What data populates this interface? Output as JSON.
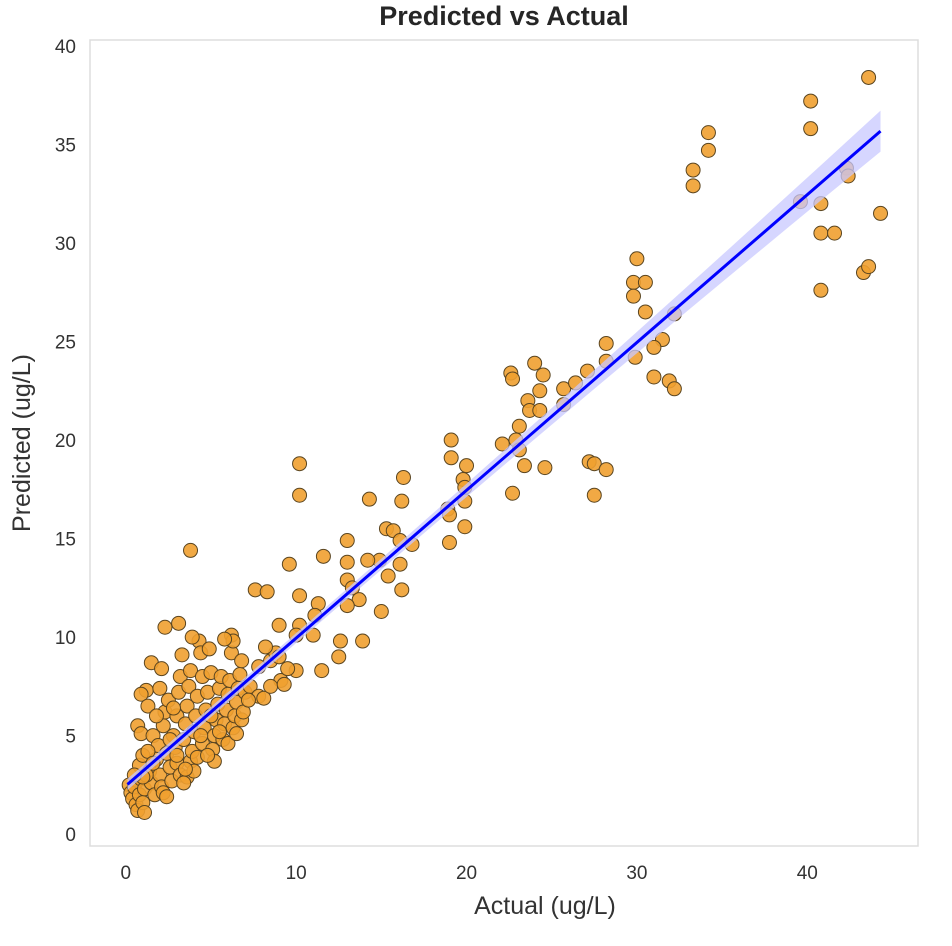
{
  "chart_data": {
    "type": "scatter",
    "title": "Predicted vs Actual",
    "xlabel": "Actual (ug/L)",
    "ylabel": "Predicted (ug/L)",
    "xlim": [
      -2.1,
      46.5
    ],
    "ylim": [
      -0.6,
      40.3
    ],
    "xticks": [
      0,
      10,
      20,
      30,
      40
    ],
    "yticks": [
      0,
      5,
      10,
      15,
      20,
      25,
      30,
      35,
      40
    ],
    "grid": false,
    "colors": {
      "points": "#f0a030",
      "point_edge": "#5a4520",
      "regression_line": "#0000ff",
      "confidence_band": "#c8c8ff",
      "frame": "#dddddd"
    },
    "regression": {
      "slope": 0.75,
      "intercept": 2.45,
      "x_range": [
        0.1,
        44.3
      ]
    },
    "points": [
      [
        40.2,
        37.2
      ],
      [
        43.6,
        38.4
      ],
      [
        40.2,
        35.8
      ],
      [
        34.2,
        35.6
      ],
      [
        34.2,
        34.7
      ],
      [
        33.3,
        33.7
      ],
      [
        33.3,
        32.9
      ],
      [
        39.6,
        32.1
      ],
      [
        40.8,
        32.0
      ],
      [
        44.3,
        31.5
      ],
      [
        40.8,
        30.5
      ],
      [
        41.6,
        30.5
      ],
      [
        42.3,
        33.8
      ],
      [
        42.4,
        33.4
      ],
      [
        43.3,
        28.5
      ],
      [
        43.6,
        28.8
      ],
      [
        40.8,
        27.6
      ],
      [
        30.0,
        29.2
      ],
      [
        29.8,
        28.0
      ],
      [
        30.5,
        28.0
      ],
      [
        29.8,
        27.3
      ],
      [
        30.5,
        26.5
      ],
      [
        32.2,
        26.4
      ],
      [
        28.2,
        24.9
      ],
      [
        31.5,
        25.1
      ],
      [
        31.0,
        24.7
      ],
      [
        29.9,
        24.2
      ],
      [
        28.2,
        24.0
      ],
      [
        31.9,
        23.0
      ],
      [
        32.2,
        22.6
      ],
      [
        31.0,
        23.2
      ],
      [
        27.1,
        23.5
      ],
      [
        25.7,
        22.6
      ],
      [
        26.4,
        22.9
      ],
      [
        25.7,
        21.8
      ],
      [
        24.0,
        23.9
      ],
      [
        24.5,
        23.3
      ],
      [
        22.6,
        23.4
      ],
      [
        22.7,
        23.1
      ],
      [
        24.3,
        22.5
      ],
      [
        23.6,
        22.0
      ],
      [
        23.7,
        21.5
      ],
      [
        24.3,
        21.5
      ],
      [
        23.1,
        20.7
      ],
      [
        22.9,
        20.0
      ],
      [
        22.1,
        19.8
      ],
      [
        23.1,
        19.5
      ],
      [
        23.4,
        18.7
      ],
      [
        24.6,
        18.6
      ],
      [
        22.7,
        17.3
      ],
      [
        27.2,
        18.9
      ],
      [
        27.5,
        18.8
      ],
      [
        28.2,
        18.5
      ],
      [
        27.5,
        17.2
      ],
      [
        19.1,
        20.0
      ],
      [
        19.1,
        19.1
      ],
      [
        20.0,
        18.7
      ],
      [
        19.8,
        18.0
      ],
      [
        19.9,
        17.6
      ],
      [
        18.9,
        16.5
      ],
      [
        19.0,
        16.2
      ],
      [
        19.9,
        16.9
      ],
      [
        19.9,
        15.6
      ],
      [
        19.0,
        14.8
      ],
      [
        10.2,
        18.8
      ],
      [
        10.2,
        17.2
      ],
      [
        16.3,
        18.1
      ],
      [
        16.2,
        16.9
      ],
      [
        14.3,
        17.0
      ],
      [
        13.0,
        14.9
      ],
      [
        15.3,
        15.5
      ],
      [
        15.7,
        15.4
      ],
      [
        16.1,
        14.9
      ],
      [
        16.8,
        14.7
      ],
      [
        16.1,
        13.7
      ],
      [
        16.2,
        12.4
      ],
      [
        14.9,
        13.9
      ],
      [
        15.4,
        13.1
      ],
      [
        14.2,
        13.9
      ],
      [
        13.0,
        13.8
      ],
      [
        13.0,
        12.9
      ],
      [
        13.3,
        12.5
      ],
      [
        13.7,
        11.9
      ],
      [
        13.0,
        11.6
      ],
      [
        15.0,
        11.3
      ],
      [
        13.9,
        9.8
      ],
      [
        12.6,
        9.8
      ],
      [
        11.6,
        14.1
      ],
      [
        9.6,
        13.7
      ],
      [
        10.2,
        12.1
      ],
      [
        11.3,
        11.7
      ],
      [
        11.1,
        11.1
      ],
      [
        10.2,
        10.6
      ],
      [
        10.0,
        10.1
      ],
      [
        11.0,
        10.1
      ],
      [
        9.0,
        10.6
      ],
      [
        8.5,
        8.8
      ],
      [
        7.6,
        12.4
      ],
      [
        8.3,
        12.3
      ],
      [
        3.8,
        14.4
      ],
      [
        3.1,
        10.7
      ],
      [
        2.3,
        10.5
      ],
      [
        6.2,
        10.1
      ],
      [
        11.5,
        8.3
      ],
      [
        12.5,
        9.0
      ],
      [
        10.0,
        8.3
      ],
      [
        9.1,
        7.8
      ],
      [
        0.2,
        2.5
      ],
      [
        0.3,
        2.1
      ],
      [
        0.4,
        1.8
      ],
      [
        0.5,
        2.4
      ],
      [
        0.6,
        1.5
      ],
      [
        0.7,
        1.2
      ],
      [
        0.8,
        2.0
      ],
      [
        0.9,
        2.8
      ],
      [
        1.0,
        1.6
      ],
      [
        1.1,
        2.3
      ],
      [
        0.8,
        3.5
      ],
      [
        1.0,
        4.0
      ],
      [
        0.7,
        5.5
      ],
      [
        0.9,
        5.1
      ],
      [
        1.2,
        7.3
      ],
      [
        0.9,
        7.1
      ],
      [
        1.5,
        8.7
      ],
      [
        1.3,
        6.5
      ],
      [
        1.6,
        5.0
      ],
      [
        1.4,
        3.2
      ],
      [
        1.5,
        2.6
      ],
      [
        1.7,
        2.0
      ],
      [
        1.8,
        3.8
      ],
      [
        1.9,
        4.5
      ],
      [
        2.0,
        3.0
      ],
      [
        2.1,
        2.4
      ],
      [
        2.2,
        5.5
      ],
      [
        2.3,
        6.2
      ],
      [
        2.0,
        7.4
      ],
      [
        2.5,
        6.8
      ],
      [
        2.4,
        4.1
      ],
      [
        2.6,
        3.4
      ],
      [
        2.7,
        2.7
      ],
      [
        2.8,
        5.0
      ],
      [
        2.9,
        4.4
      ],
      [
        3.0,
        6.0
      ],
      [
        3.1,
        7.2
      ],
      [
        3.2,
        8.0
      ],
      [
        3.3,
        9.1
      ],
      [
        3.0,
        3.6
      ],
      [
        3.2,
        3.0
      ],
      [
        3.4,
        4.8
      ],
      [
        3.5,
        5.6
      ],
      [
        3.6,
        6.5
      ],
      [
        3.7,
        7.5
      ],
      [
        3.8,
        8.3
      ],
      [
        3.6,
        2.9
      ],
      [
        3.8,
        3.7
      ],
      [
        3.9,
        4.2
      ],
      [
        4.0,
        5.2
      ],
      [
        4.1,
        6.0
      ],
      [
        4.2,
        7.0
      ],
      [
        4.3,
        9.8
      ],
      [
        4.4,
        9.2
      ],
      [
        4.5,
        8.0
      ],
      [
        4.0,
        3.2
      ],
      [
        4.2,
        3.9
      ],
      [
        4.5,
        4.6
      ],
      [
        4.6,
        5.4
      ],
      [
        4.7,
        6.3
      ],
      [
        4.8,
        7.2
      ],
      [
        4.9,
        9.4
      ],
      [
        5.0,
        8.2
      ],
      [
        5.1,
        4.3
      ],
      [
        5.2,
        5.0
      ],
      [
        5.3,
        5.8
      ],
      [
        5.4,
        6.6
      ],
      [
        5.5,
        7.4
      ],
      [
        5.6,
        8.0
      ],
      [
        5.2,
        3.7
      ],
      [
        5.7,
        4.8
      ],
      [
        5.8,
        5.6
      ],
      [
        5.9,
        6.3
      ],
      [
        6.0,
        7.1
      ],
      [
        6.1,
        7.8
      ],
      [
        6.2,
        9.2
      ],
      [
        6.3,
        9.8
      ],
      [
        6.0,
        4.6
      ],
      [
        6.3,
        5.4
      ],
      [
        6.4,
        6.0
      ],
      [
        6.5,
        6.7
      ],
      [
        6.6,
        7.4
      ],
      [
        6.7,
        8.1
      ],
      [
        6.5,
        5.1
      ],
      [
        6.8,
        5.8
      ],
      [
        7.0,
        7.2
      ],
      [
        6.8,
        8.8
      ],
      [
        7.3,
        7.5
      ],
      [
        7.8,
        7.0
      ],
      [
        8.1,
        6.9
      ],
      [
        8.5,
        7.5
      ],
      [
        8.8,
        9.2
      ],
      [
        9.0,
        9.0
      ],
      [
        9.3,
        7.6
      ],
      [
        9.5,
        8.4
      ],
      [
        8.2,
        9.5
      ],
      [
        7.8,
        8.5
      ],
      [
        1.2,
        3.0
      ],
      [
        1.3,
        4.2
      ],
      [
        1.6,
        3.6
      ],
      [
        2.2,
        2.1
      ],
      [
        2.6,
        4.8
      ],
      [
        3.4,
        2.6
      ],
      [
        4.8,
        4.0
      ],
      [
        5.8,
        9.9
      ],
      [
        1.0,
        2.9
      ],
      [
        0.5,
        3.0
      ],
      [
        1.1,
        1.1
      ],
      [
        2.4,
        1.9
      ],
      [
        3.0,
        4.0
      ],
      [
        4.4,
        5.0
      ],
      [
        5.0,
        6.0
      ],
      [
        5.5,
        5.2
      ],
      [
        3.5,
        3.3
      ],
      [
        2.8,
        6.4
      ],
      [
        1.8,
        6.0
      ],
      [
        2.1,
        8.4
      ],
      [
        3.9,
        10.0
      ],
      [
        6.9,
        6.2
      ],
      [
        7.2,
        6.8
      ]
    ]
  }
}
